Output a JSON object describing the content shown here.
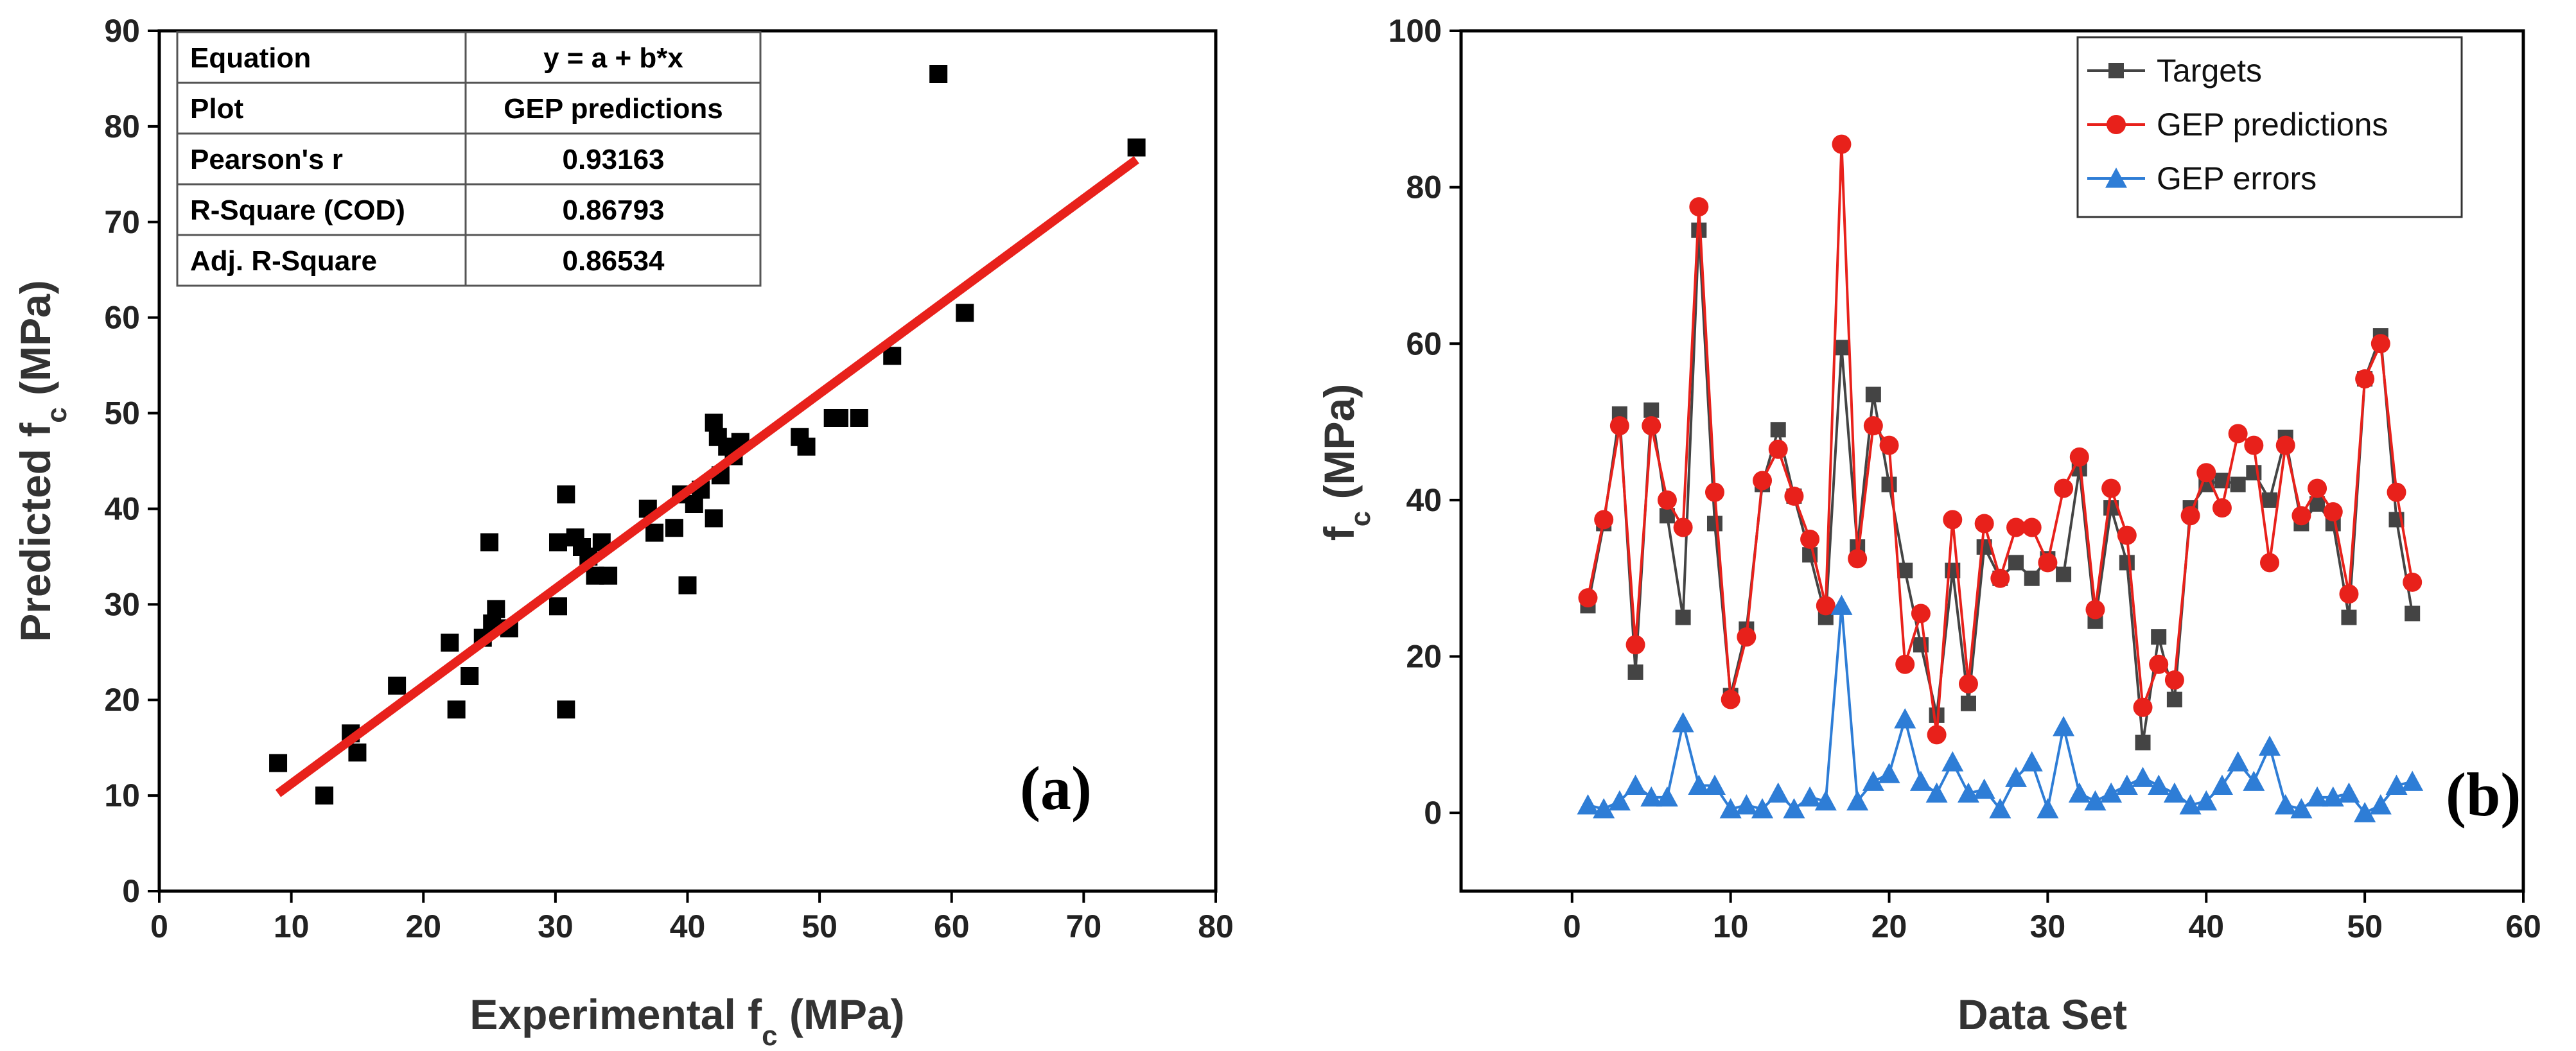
{
  "chart_data": [
    {
      "type": "scatter",
      "panel_label": "(a)",
      "xlabel": "Experimental f_c (MPa)",
      "ylabel": "Predicted f_c (MPa)",
      "xlabel_main": "Experimental f",
      "xlabel_sub": "c",
      "xlabel_unit": " (MPa)",
      "ylabel_main": "Predicted f",
      "ylabel_sub": "c",
      "ylabel_unit": " (MPa)",
      "xlim": [
        0,
        80
      ],
      "ylim": [
        0,
        90
      ],
      "xticks": [
        0,
        10,
        20,
        30,
        40,
        50,
        60,
        70,
        80
      ],
      "yticks": [
        0,
        10,
        20,
        30,
        40,
        50,
        60,
        70,
        80,
        90
      ],
      "grid": false,
      "colors": {
        "points": "#000000",
        "fit_line": "#e8211b"
      },
      "points": [
        [
          9,
          13.4
        ],
        [
          12.5,
          10
        ],
        [
          14.5,
          16.5
        ],
        [
          15,
          14.5
        ],
        [
          18,
          21.5
        ],
        [
          22,
          26
        ],
        [
          22.5,
          19
        ],
        [
          23.5,
          22.5
        ],
        [
          24.5,
          26.5
        ],
        [
          25.2,
          28
        ],
        [
          25.5,
          29.5
        ],
        [
          25,
          36.5
        ],
        [
          26.5,
          27.5
        ],
        [
          30.2,
          36.5
        ],
        [
          30.2,
          29.8
        ],
        [
          30.8,
          41.5
        ],
        [
          30.8,
          19
        ],
        [
          31.5,
          37
        ],
        [
          32,
          36
        ],
        [
          32.5,
          35
        ],
        [
          33,
          33
        ],
        [
          33.5,
          36.5
        ],
        [
          34,
          33
        ],
        [
          37,
          40
        ],
        [
          37.5,
          37.5
        ],
        [
          39,
          38
        ],
        [
          39.5,
          41.5
        ],
        [
          40,
          32
        ],
        [
          40.5,
          40.5
        ],
        [
          41,
          42
        ],
        [
          42,
          49
        ],
        [
          42.3,
          47.5
        ],
        [
          42,
          39
        ],
        [
          42.5,
          43.5
        ],
        [
          43,
          46.5
        ],
        [
          43.5,
          45.5
        ],
        [
          44,
          47
        ],
        [
          48.5,
          47.5
        ],
        [
          49,
          46.5
        ],
        [
          51,
          49.5
        ],
        [
          51.5,
          49.5
        ],
        [
          53,
          49.5
        ],
        [
          55.5,
          56
        ],
        [
          59,
          85.5
        ],
        [
          61,
          60.5
        ],
        [
          74,
          77.8
        ]
      ],
      "fit": {
        "a": 1.04,
        "b": 1.02,
        "x_range": [
          9,
          74
        ]
      },
      "stats_table": [
        [
          "Equation",
          "y = a + b*x"
        ],
        [
          "Plot",
          "GEP predictions"
        ],
        [
          "Pearson's r",
          "0.93163"
        ],
        [
          "R-Square (COD)",
          "0.86793"
        ],
        [
          "Adj. R-Square",
          "0.86534"
        ]
      ]
    },
    {
      "type": "line",
      "panel_label": "(b)",
      "xlabel": "Data Set",
      "ylabel": "f_c (MPa)",
      "ylabel_main": "f",
      "ylabel_sub": "c",
      "ylabel_unit": " (MPa)",
      "xlim": [
        -7,
        60
      ],
      "ylim": [
        -10,
        100
      ],
      "xticks": [
        0,
        10,
        20,
        30,
        40,
        50,
        60
      ],
      "yticks": [
        0,
        20,
        40,
        60,
        80,
        100
      ],
      "grid": false,
      "legend_position": "top-right",
      "x": [
        1,
        2,
        3,
        4,
        5,
        6,
        7,
        8,
        9,
        10,
        11,
        12,
        13,
        14,
        15,
        16,
        17,
        18,
        19,
        20,
        21,
        22,
        23,
        24,
        25,
        26,
        27,
        28,
        29,
        30,
        31,
        32,
        33,
        34,
        35,
        36,
        37,
        38,
        39,
        40,
        41,
        42,
        43,
        44,
        45,
        46,
        47,
        48,
        49,
        50,
        51,
        52,
        53
      ],
      "series": [
        {
          "name": "Targets",
          "marker": "square",
          "color": "#444444",
          "values": [
            26.5,
            37,
            51,
            18,
            51.5,
            38,
            25,
            74.5,
            37,
            15,
            23.5,
            42,
            49,
            40.5,
            33,
            25,
            59.5,
            34,
            53.5,
            42,
            31,
            21.5,
            12.5,
            31,
            14,
            34,
            30,
            32,
            30,
            32.5,
            30.5,
            44,
            24.5,
            39,
            32,
            9,
            22.5,
            14.5,
            39,
            42,
            42.5,
            42,
            43.5,
            40,
            48,
            37,
            39.5,
            37,
            25,
            55.5,
            61,
            37.5,
            25.5
          ]
        },
        {
          "name": "GEP predictions",
          "marker": "circle",
          "color": "#e8211b",
          "values": [
            27.5,
            37.5,
            49.5,
            21.5,
            49.5,
            40,
            36.5,
            77.5,
            41,
            14.5,
            22.5,
            42.5,
            46.5,
            40.5,
            35,
            26.5,
            85.5,
            32.5,
            49.5,
            47,
            19,
            25.5,
            10,
            37.5,
            16.5,
            37,
            30,
            36.5,
            36.5,
            32,
            41.5,
            45.5,
            26,
            41.5,
            35.5,
            13.5,
            19,
            17,
            38,
            43.5,
            39,
            48.5,
            47,
            32,
            47,
            38,
            41.5,
            38.5,
            28,
            55.5,
            60,
            41,
            29.5
          ]
        },
        {
          "name": "GEP errors",
          "marker": "triangle",
          "color": "#2e7dd6",
          "values": [
            1,
            0.5,
            1.5,
            3.5,
            2,
            2,
            11.5,
            3.5,
            3.5,
            0.5,
            1,
            0.5,
            2.5,
            0.5,
            2,
            1.5,
            26.5,
            1.5,
            4,
            5,
            12,
            4,
            2.5,
            6.5,
            2.5,
            3,
            0.5,
            4.5,
            6.5,
            0.5,
            11,
            2.5,
            1.5,
            2.5,
            3.5,
            4.5,
            3.5,
            2.5,
            1,
            1.5,
            3.5,
            6.5,
            4,
            8.5,
            1,
            0.5,
            2,
            2,
            2.5,
            0,
            1,
            3.5,
            4
          ]
        }
      ]
    }
  ]
}
